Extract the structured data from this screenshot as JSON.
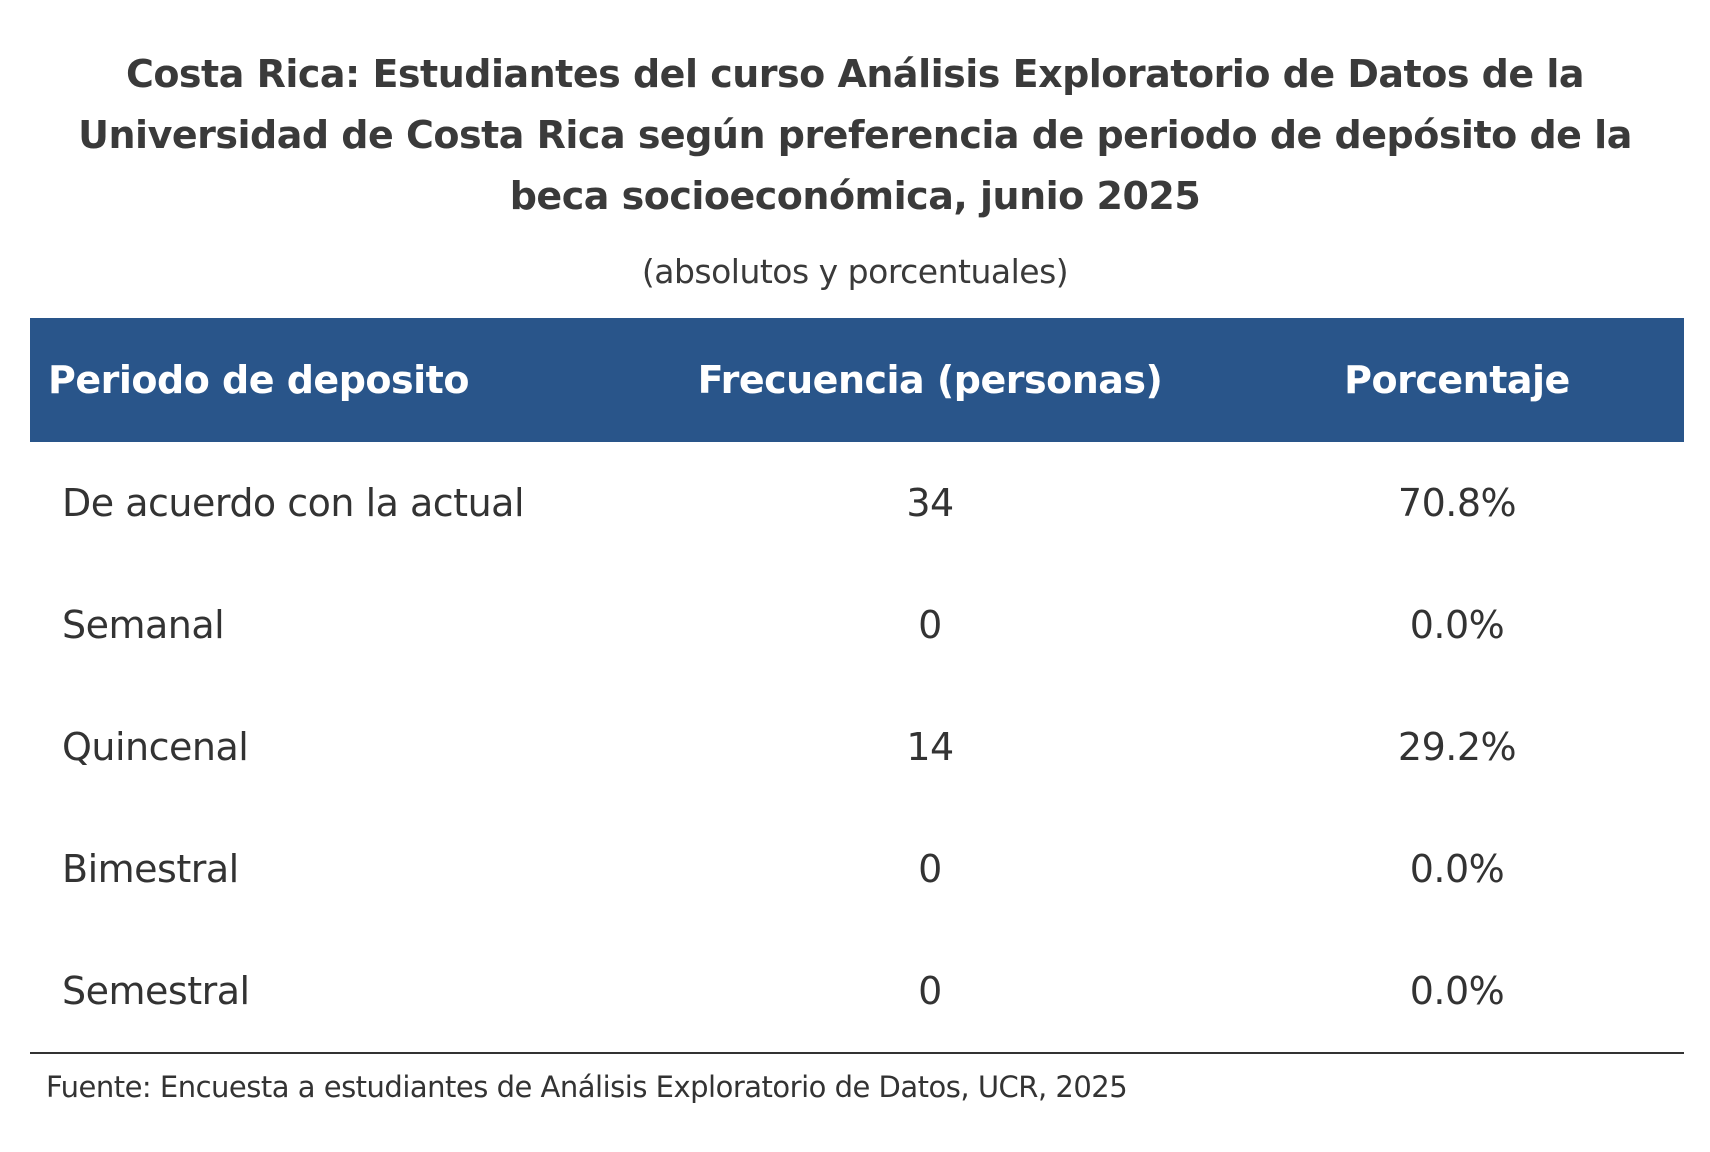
{
  "title": "Costa Rica: Estudiantes del curso Análisis Exploratorio de Datos de la Universidad de Costa Rica según preferencia de periodo de depósito de la beca socioeconómica, junio 2025",
  "subtitle": "(absolutos y porcentuales)",
  "table": {
    "headers": [
      "Periodo de deposito",
      "Frecuencia (personas)",
      "Porcentaje"
    ],
    "rows": [
      [
        "De acuerdo con la actual",
        "34",
        "70.8%"
      ],
      [
        "Semanal",
        "0",
        "0.0%"
      ],
      [
        "Quincenal",
        "14",
        "29.2%"
      ],
      [
        "Bimestral",
        "0",
        "0.0%"
      ],
      [
        "Semestral",
        "0",
        "0.0%"
      ]
    ],
    "header_bg_color": "#29558a"
  },
  "source": "Fuente: Encuesta a estudiantes de Análisis Exploratorio de Datos, UCR, 2025"
}
